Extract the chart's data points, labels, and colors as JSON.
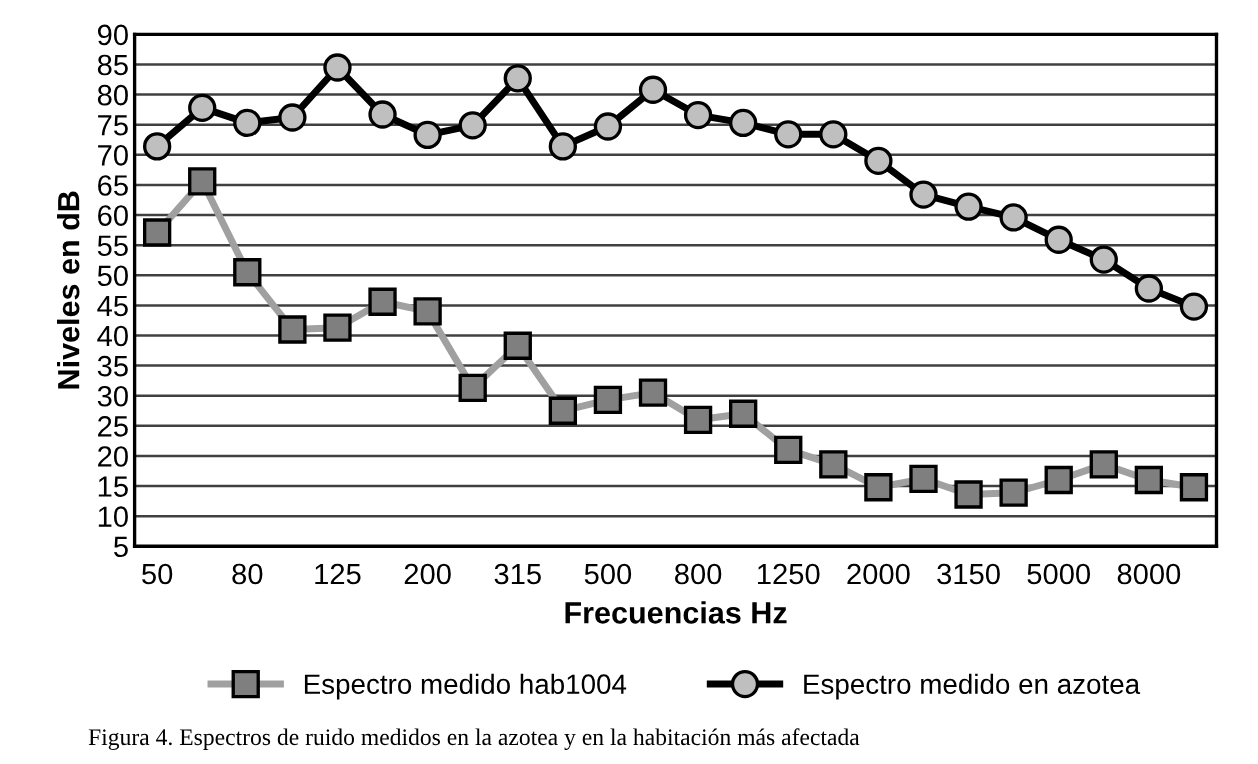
{
  "chart_data": {
    "type": "line",
    "xlabel": "Frecuencias Hz",
    "ylabel": "Niveles en dB",
    "categories": [
      "50",
      null,
      "80",
      null,
      "125",
      null,
      "200",
      null,
      "315",
      null,
      "500",
      null,
      "800",
      null,
      "1250",
      null,
      "2000",
      null,
      "3150",
      null,
      "5000",
      null,
      "8000",
      null
    ],
    "series": [
      {
        "name": "Espectro medido hab1004",
        "color": "#a0a0a0",
        "marker": "square",
        "values": [
          57.1,
          65.6,
          50.5,
          41.0,
          41.3,
          45.6,
          44.0,
          31.3,
          38.3,
          27.5,
          29.3,
          30.5,
          26.0,
          27.0,
          21.0,
          18.6,
          14.8,
          16.2,
          13.6,
          13.9,
          16.0,
          18.6,
          16.0,
          14.8
        ]
      },
      {
        "name": "Espectro medido en azotea",
        "color": "#000000",
        "marker": "circle",
        "values": [
          71.4,
          77.8,
          75.3,
          76.2,
          84.5,
          76.7,
          73.3,
          74.9,
          82.7,
          71.4,
          74.7,
          80.8,
          76.6,
          75.3,
          73.4,
          73.4,
          69.0,
          63.4,
          61.4,
          59.6,
          55.9,
          52.6,
          47.8,
          44.8
        ]
      }
    ],
    "ylim": [
      5,
      90
    ],
    "yticks": [
      5,
      10,
      15,
      20,
      25,
      30,
      35,
      40,
      45,
      50,
      55,
      60,
      65,
      70,
      75,
      80,
      85,
      90
    ],
    "grid": "y",
    "legend": "bottom",
    "annotations": [
      "Figura 4. Espectros de ruido medidos en la azotea y en la habitación más afectada"
    ]
  }
}
